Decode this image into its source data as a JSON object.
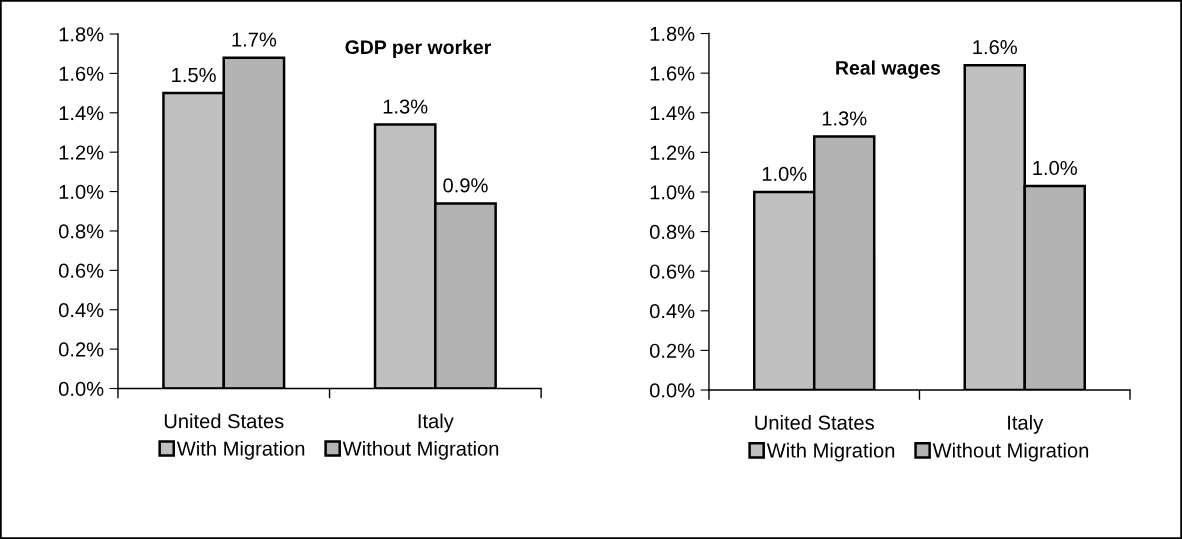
{
  "chart_data": [
    {
      "type": "bar",
      "title": "GDP per worker",
      "categories": [
        "United States",
        "Italy"
      ],
      "series": [
        {
          "name": "With Migration",
          "color": "#c0c0c0",
          "values": [
            1.5,
            1.34
          ],
          "value_labels": [
            "1.5%",
            "1.3%"
          ]
        },
        {
          "name": "Without Migration",
          "color": "#b3b3b3",
          "values": [
            1.68,
            0.94
          ],
          "value_labels": [
            "1.7%",
            "0.9%"
          ]
        }
      ],
      "ylim": [
        0,
        1.8
      ],
      "yticks": [
        {
          "value": 0,
          "label": "0.0%"
        },
        {
          "value": 0.2,
          "label": "0.2%"
        },
        {
          "value": 0.4,
          "label": "0.4%"
        },
        {
          "value": 0.6,
          "label": "0.6%"
        },
        {
          "value": 0.8,
          "label": "0.8%"
        },
        {
          "value": 1.0,
          "label": "1.0%"
        },
        {
          "value": 1.2,
          "label": "1.2%"
        },
        {
          "value": 1.4,
          "label": "1.4%"
        },
        {
          "value": 1.6,
          "label": "1.6%"
        },
        {
          "value": 1.8,
          "label": "1.8%"
        }
      ],
      "legend": "bottom"
    },
    {
      "type": "bar",
      "title": "Real wages",
      "categories": [
        "United States",
        "Italy"
      ],
      "series": [
        {
          "name": "With Migration",
          "color": "#c0c0c0",
          "values": [
            1.0,
            1.64
          ],
          "value_labels": [
            "1.0%",
            "1.6%"
          ]
        },
        {
          "name": "Without Migration",
          "color": "#b3b3b3",
          "values": [
            1.28,
            1.03
          ],
          "value_labels": [
            "1.3%",
            "1.0%"
          ]
        }
      ],
      "ylim": [
        0,
        1.8
      ],
      "yticks": [
        {
          "value": 0,
          "label": "0.0%"
        },
        {
          "value": 0.2,
          "label": "0.2%"
        },
        {
          "value": 0.4,
          "label": "0.4%"
        },
        {
          "value": 0.6,
          "label": "0.6%"
        },
        {
          "value": 0.8,
          "label": "0.8%"
        },
        {
          "value": 1.0,
          "label": "1.0%"
        },
        {
          "value": 1.2,
          "label": "1.2%"
        },
        {
          "value": 1.4,
          "label": "1.4%"
        },
        {
          "value": 1.6,
          "label": "1.6%"
        },
        {
          "value": 1.8,
          "label": "1.8%"
        }
      ],
      "legend": "bottom"
    }
  ]
}
